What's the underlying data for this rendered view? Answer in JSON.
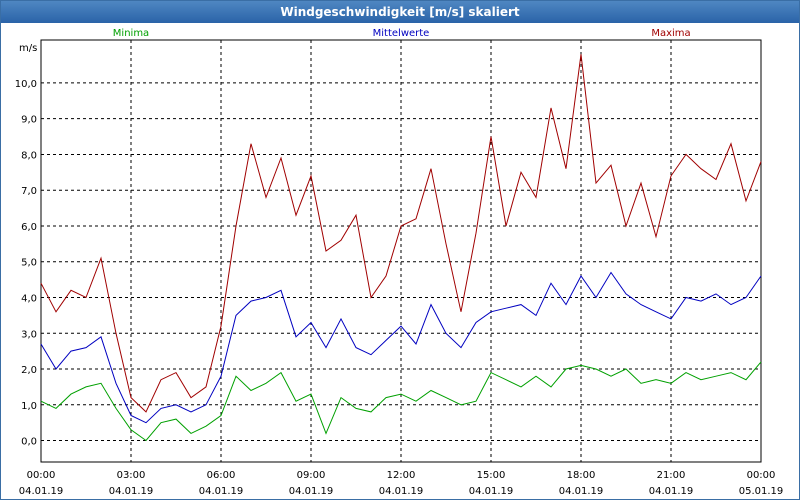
{
  "window": {
    "title": "Windgeschwindigkeit [m/s] skaliert"
  },
  "chart_data": {
    "type": "line",
    "title": "Windgeschwindigkeit [m/s] skaliert",
    "ylabel": "m/s",
    "xlabel": "",
    "xlim": [
      0,
      24
    ],
    "ylim": [
      -0.6,
      11.2
    ],
    "grid": true,
    "legend_position": "top",
    "y_ticks": [
      {
        "value": 0,
        "label": "0,0"
      },
      {
        "value": 1,
        "label": "1,0"
      },
      {
        "value": 2,
        "label": "2,0"
      },
      {
        "value": 3,
        "label": "3,0"
      },
      {
        "value": 4,
        "label": "4,0"
      },
      {
        "value": 5,
        "label": "5,0"
      },
      {
        "value": 6,
        "label": "6,0"
      },
      {
        "value": 7,
        "label": "7,0"
      },
      {
        "value": 8,
        "label": "8,0"
      },
      {
        "value": 9,
        "label": "9,0"
      },
      {
        "value": 10,
        "label": "10,0"
      }
    ],
    "x_ticks": [
      {
        "value": 0,
        "time": "00:00",
        "date": "04.01.19"
      },
      {
        "value": 3,
        "time": "03:00",
        "date": "04.01.19"
      },
      {
        "value": 6,
        "time": "06:00",
        "date": "04.01.19"
      },
      {
        "value": 9,
        "time": "09:00",
        "date": "04.01.19"
      },
      {
        "value": 12,
        "time": "12:00",
        "date": "04.01.19"
      },
      {
        "value": 15,
        "time": "15:00",
        "date": "04.01.19"
      },
      {
        "value": 18,
        "time": "18:00",
        "date": "04.01.19"
      },
      {
        "value": 21,
        "time": "21:00",
        "date": "04.01.19"
      },
      {
        "value": 24,
        "time": "00:00",
        "date": "05.01.19"
      }
    ],
    "series": [
      {
        "name": "Minima",
        "color": "#00a000",
        "x": [
          0,
          0.5,
          1,
          1.5,
          2,
          2.5,
          3,
          3.5,
          4,
          4.5,
          5,
          5.5,
          6,
          6.5,
          7,
          7.5,
          8,
          8.5,
          9,
          9.5,
          10,
          10.5,
          11,
          11.5,
          12,
          12.5,
          13,
          13.5,
          14,
          14.5,
          15,
          15.5,
          16,
          16.5,
          17,
          17.5,
          18,
          18.5,
          19,
          19.5,
          20,
          20.5,
          21,
          21.5,
          22,
          22.5,
          23,
          23.5,
          24
        ],
        "y": [
          1.1,
          0.9,
          1.3,
          1.5,
          1.6,
          0.9,
          0.3,
          0.0,
          0.5,
          0.6,
          0.2,
          0.4,
          0.7,
          1.8,
          1.4,
          1.6,
          1.9,
          1.1,
          1.3,
          0.2,
          1.2,
          0.9,
          0.8,
          1.2,
          1.3,
          1.1,
          1.4,
          1.2,
          1.0,
          1.1,
          1.9,
          1.7,
          1.5,
          1.8,
          1.5,
          2.0,
          2.1,
          2.0,
          1.8,
          2.0,
          1.6,
          1.7,
          1.6,
          1.9,
          1.7,
          1.8,
          1.9,
          1.7,
          2.2
        ]
      },
      {
        "name": "Mittelwerte",
        "color": "#0000c0",
        "x": [
          0,
          0.5,
          1,
          1.5,
          2,
          2.5,
          3,
          3.5,
          4,
          4.5,
          5,
          5.5,
          6,
          6.5,
          7,
          7.5,
          8,
          8.5,
          9,
          9.5,
          10,
          10.5,
          11,
          11.5,
          12,
          12.5,
          13,
          13.5,
          14,
          14.5,
          15,
          15.5,
          16,
          16.5,
          17,
          17.5,
          18,
          18.5,
          19,
          19.5,
          20,
          20.5,
          21,
          21.5,
          22,
          22.5,
          23,
          23.5,
          24
        ],
        "y": [
          2.7,
          2.0,
          2.5,
          2.6,
          2.9,
          1.6,
          0.7,
          0.5,
          0.9,
          1.0,
          0.8,
          1.0,
          1.8,
          3.5,
          3.9,
          4.0,
          4.2,
          2.9,
          3.3,
          2.6,
          3.4,
          2.6,
          2.4,
          2.8,
          3.2,
          2.7,
          3.8,
          3.0,
          2.6,
          3.3,
          3.6,
          3.7,
          3.8,
          3.5,
          4.4,
          3.8,
          4.6,
          4.0,
          4.7,
          4.1,
          3.8,
          3.6,
          3.4,
          4.0,
          3.9,
          4.1,
          3.8,
          4.0,
          4.6
        ]
      },
      {
        "name": "Maxima",
        "color": "#a00000",
        "x": [
          0,
          0.5,
          1,
          1.5,
          2,
          2.5,
          3,
          3.5,
          4,
          4.5,
          5,
          5.5,
          6,
          6.5,
          7,
          7.5,
          8,
          8.5,
          9,
          9.5,
          10,
          10.5,
          11,
          11.5,
          12,
          12.5,
          13,
          13.5,
          14,
          14.5,
          15,
          15.5,
          16,
          16.5,
          17,
          17.5,
          18,
          18.5,
          19,
          19.5,
          20,
          20.5,
          21,
          21.5,
          22,
          22.5,
          23,
          23.5,
          24
        ],
        "y": [
          4.4,
          3.6,
          4.2,
          4.0,
          5.1,
          3.0,
          1.2,
          0.8,
          1.7,
          1.9,
          1.2,
          1.5,
          3.2,
          6.0,
          8.3,
          6.8,
          7.9,
          6.3,
          7.4,
          5.3,
          5.6,
          6.3,
          4.0,
          4.6,
          6.0,
          6.2,
          7.6,
          5.5,
          3.6,
          5.8,
          8.5,
          6.0,
          7.5,
          6.8,
          9.3,
          7.6,
          10.8,
          7.2,
          7.7,
          6.0,
          7.2,
          5.7,
          7.4,
          8.0,
          7.6,
          7.3,
          8.3,
          6.7,
          7.8
        ]
      }
    ]
  }
}
